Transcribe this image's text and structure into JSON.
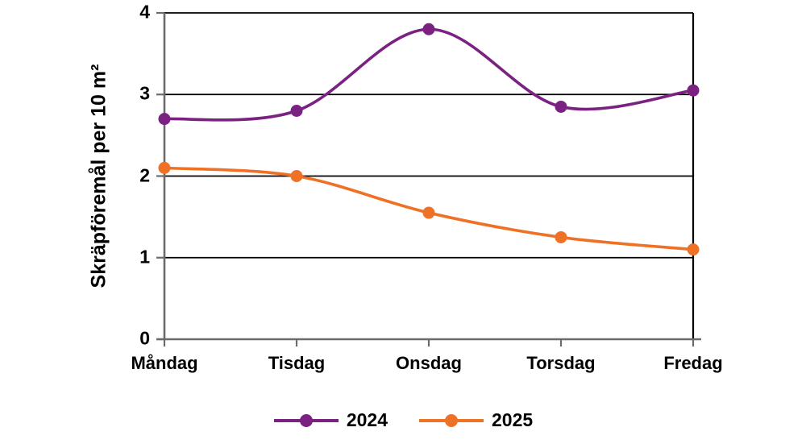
{
  "chart_data": {
    "type": "line",
    "title": "",
    "xlabel": "",
    "ylabel": "Skräpföremål per 10 m²",
    "categories": [
      "Måndag",
      "Tisdag",
      "Onsdag",
      "Torsdag",
      "Fredag"
    ],
    "series": [
      {
        "name": "2024",
        "color": "#7a2182",
        "values": [
          2.7,
          2.8,
          3.8,
          2.85,
          3.05
        ]
      },
      {
        "name": "2025",
        "color": "#ee7125",
        "values": [
          2.1,
          2.0,
          1.55,
          1.25,
          1.1
        ]
      }
    ],
    "ylim": [
      0,
      4
    ],
    "y_ticks": [
      0,
      1,
      2,
      3,
      4
    ],
    "y_tick_labels_top_to_bottom": [
      "4",
      "3",
      "2",
      "1",
      "0"
    ],
    "grid": true,
    "smooth": true,
    "legend_position": "bottom",
    "marker": "circle",
    "colors": {
      "gridline": "#000000",
      "plot_border": "#000000",
      "axis": "#6b6b6b",
      "text": "#000000",
      "background": "#ffffff"
    }
  }
}
